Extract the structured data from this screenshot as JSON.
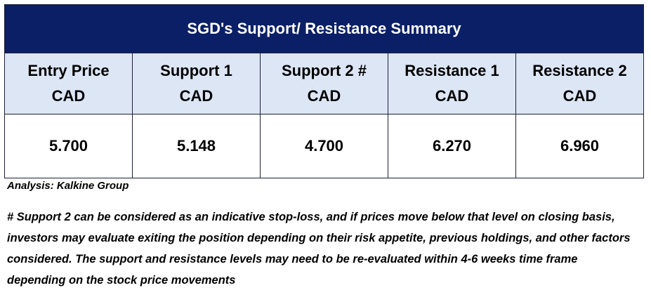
{
  "table": {
    "title": "SGD's Support/  Resistance Summary",
    "headers": [
      {
        "line1": "Entry Price",
        "line2": "CAD"
      },
      {
        "line1": "Support 1",
        "line2": "CAD"
      },
      {
        "line1": "Support 2 #",
        "line2": "CAD"
      },
      {
        "line1": "Resistance 1",
        "line2": "CAD"
      },
      {
        "line1": "Resistance 2",
        "line2": "CAD"
      }
    ],
    "values": [
      "5.700",
      "5.148",
      "4.700",
      "6.270",
      "6.960"
    ],
    "colors": {
      "title_bg": "#0b1f66",
      "header_bg": "#dde6f5",
      "border": "#1f1f3a"
    }
  },
  "analysis": "Analysis: Kalkine Group",
  "footnote": "# Support 2 can be considered as an indicative stop-loss, and if prices move below that level on closing basis, investors may evaluate exiting the position depending on their risk appetite, previous holdings, and other factors considered. The support and resistance levels may need to be re-evaluated within 4-6 weeks time frame depending on the stock price movements"
}
